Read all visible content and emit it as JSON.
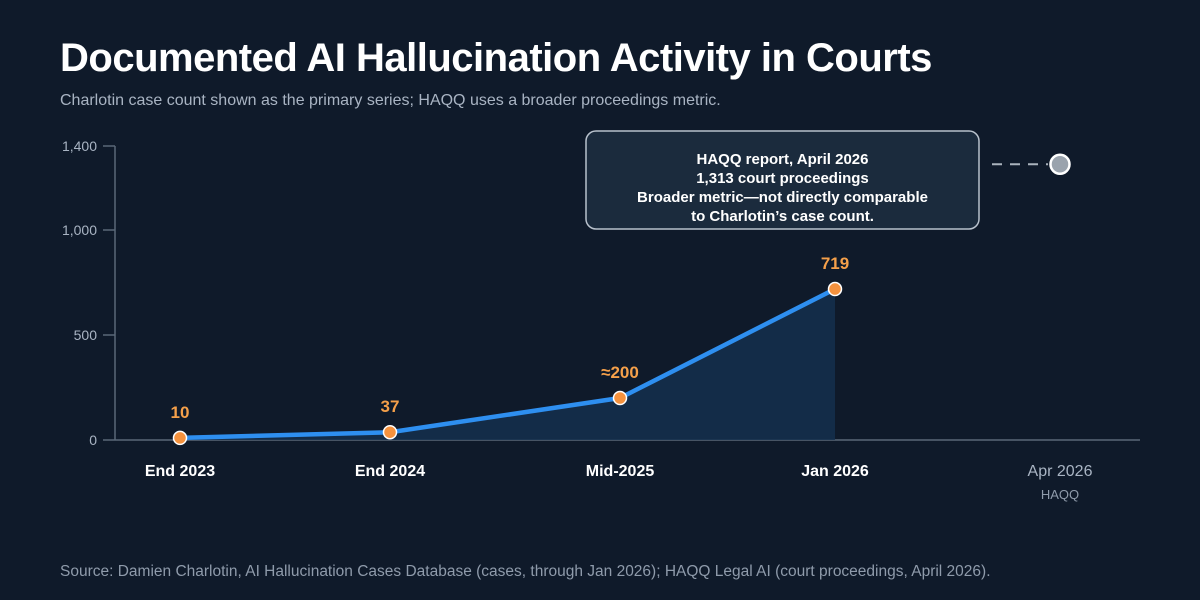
{
  "title": "Documented AI Hallucination Activity in Courts",
  "subtitle": "Charlotin case count shown as the primary series; HAQQ uses a broader proceedings metric.",
  "source": "Source: Damien Charlotin, AI Hallucination Cases Database (cases, through Jan 2026); HAQQ Legal AI (court proceedings, April 2026).",
  "colors": {
    "background": "#0f1a2a",
    "line": "#2e8ff0",
    "area": "#14304d",
    "point": "#f5923e",
    "value_label": "#f5a04a",
    "haqq_point": "#9aa3ad",
    "axis": "#5a6878"
  },
  "chart_data": {
    "type": "line",
    "title": "Documented AI Hallucination Activity in Courts",
    "xlabel": "",
    "ylabel": "",
    "ylim": [
      0,
      1400
    ],
    "yticks": [
      0,
      500,
      1000,
      1400
    ],
    "ytick_labels": [
      "0",
      "500",
      "1,000",
      "1,400"
    ],
    "categories": [
      "End 2023",
      "End 2024",
      "Mid-2025",
      "Jan 2026",
      "Apr 2026"
    ],
    "category_sublabels": [
      "",
      "",
      "",
      "",
      "HAQQ"
    ],
    "series": [
      {
        "name": "Charlotin",
        "x": [
          "End 2023",
          "End 2024",
          "Mid-2025",
          "Jan 2026"
        ],
        "values": [
          10,
          37,
          200,
          719
        ],
        "value_labels": [
          "10",
          "37",
          "≈200",
          "719"
        ]
      },
      {
        "name": "HAQQ",
        "x": [
          "Apr 2026"
        ],
        "values": [
          1313
        ]
      }
    ],
    "annotation": {
      "lines": [
        "HAQQ report, April 2026",
        "1,313 court proceedings",
        "Broader metric—not directly comparable",
        "to Charlotin’s case count."
      ]
    },
    "grid": false,
    "legend": "none"
  }
}
